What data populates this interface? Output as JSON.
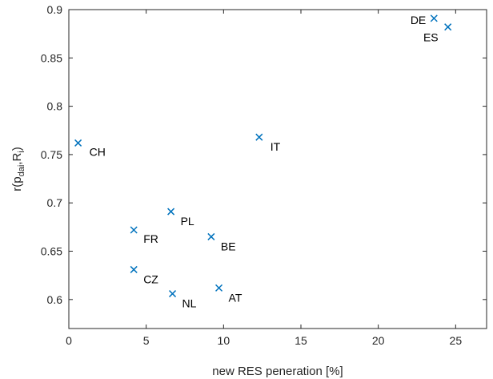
{
  "chart_data": {
    "type": "scatter",
    "title": "",
    "xlabel": "new RES peneration [%]",
    "ylabel": {
      "base": "r(p",
      "sub1": "dai",
      "mid": ",R",
      "sub2": "i",
      "end": ")"
    },
    "xlim": [
      0,
      27
    ],
    "ylim": [
      0.57,
      0.9
    ],
    "xticks": [
      0,
      5,
      10,
      15,
      20,
      25
    ],
    "yticks": [
      0.6,
      0.65,
      0.7,
      0.75,
      0.8,
      0.85,
      0.9
    ],
    "xtick_labels": [
      "0",
      "5",
      "10",
      "15",
      "20",
      "25"
    ],
    "ytick_labels": [
      "0.6",
      "0.65",
      "0.7",
      "0.75",
      "0.8",
      "0.85",
      "0.9"
    ],
    "grid": false,
    "marker": "x",
    "marker_color": "#0072BD",
    "points": [
      {
        "label": "DE",
        "x": 23.6,
        "y": 0.891
      },
      {
        "label": "ES",
        "x": 24.5,
        "y": 0.882
      },
      {
        "label": "CH",
        "x": 0.6,
        "y": 0.762
      },
      {
        "label": "IT",
        "x": 12.3,
        "y": 0.768
      },
      {
        "label": "PL",
        "x": 6.6,
        "y": 0.691
      },
      {
        "label": "FR",
        "x": 4.2,
        "y": 0.672
      },
      {
        "label": "BE",
        "x": 9.2,
        "y": 0.665
      },
      {
        "label": "CZ",
        "x": 4.2,
        "y": 0.631
      },
      {
        "label": "NL",
        "x": 6.7,
        "y": 0.606
      },
      {
        "label": "AT",
        "x": 9.7,
        "y": 0.612
      }
    ]
  }
}
